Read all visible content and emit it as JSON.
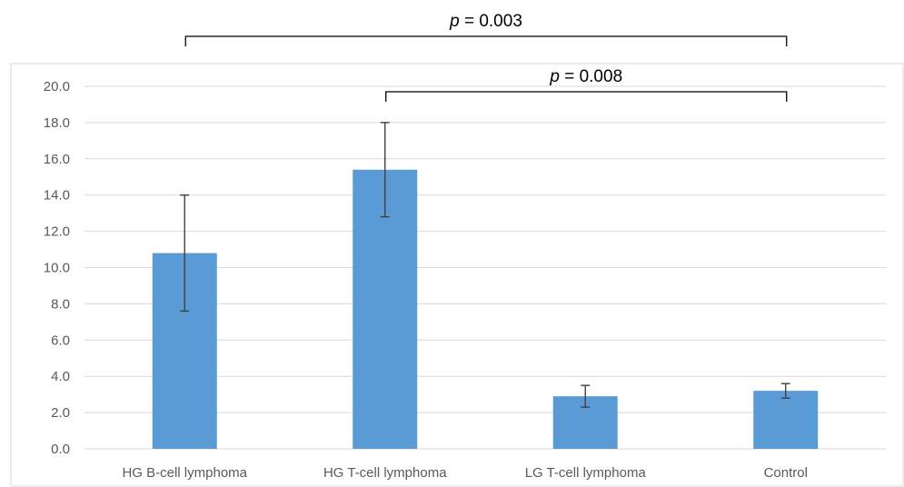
{
  "chart_data": {
    "type": "bar",
    "categories": [
      "HG B-cell lymphoma",
      "HG T-cell lymphoma",
      "LG T-cell lymphoma",
      "Control"
    ],
    "values": [
      10.8,
      15.4,
      2.9,
      3.2
    ],
    "error_low": [
      7.6,
      12.8,
      2.3,
      2.8
    ],
    "error_high": [
      14.0,
      18.0,
      3.5,
      3.6
    ],
    "ylim": [
      0,
      20
    ],
    "yticks": [
      "0.0",
      "2.0",
      "4.0",
      "6.0",
      "8.0",
      "10.0",
      "12.0",
      "14.0",
      "16.0",
      "18.0",
      "20.0"
    ],
    "grid": true,
    "bar_color": "#5b9bd5",
    "annotations": [
      {
        "p_label": "p",
        "p_value": " = 0.003",
        "from": 0,
        "to": 3
      },
      {
        "p_label": "p",
        "p_value": " = 0.008",
        "from": 1,
        "to": 3
      }
    ]
  }
}
